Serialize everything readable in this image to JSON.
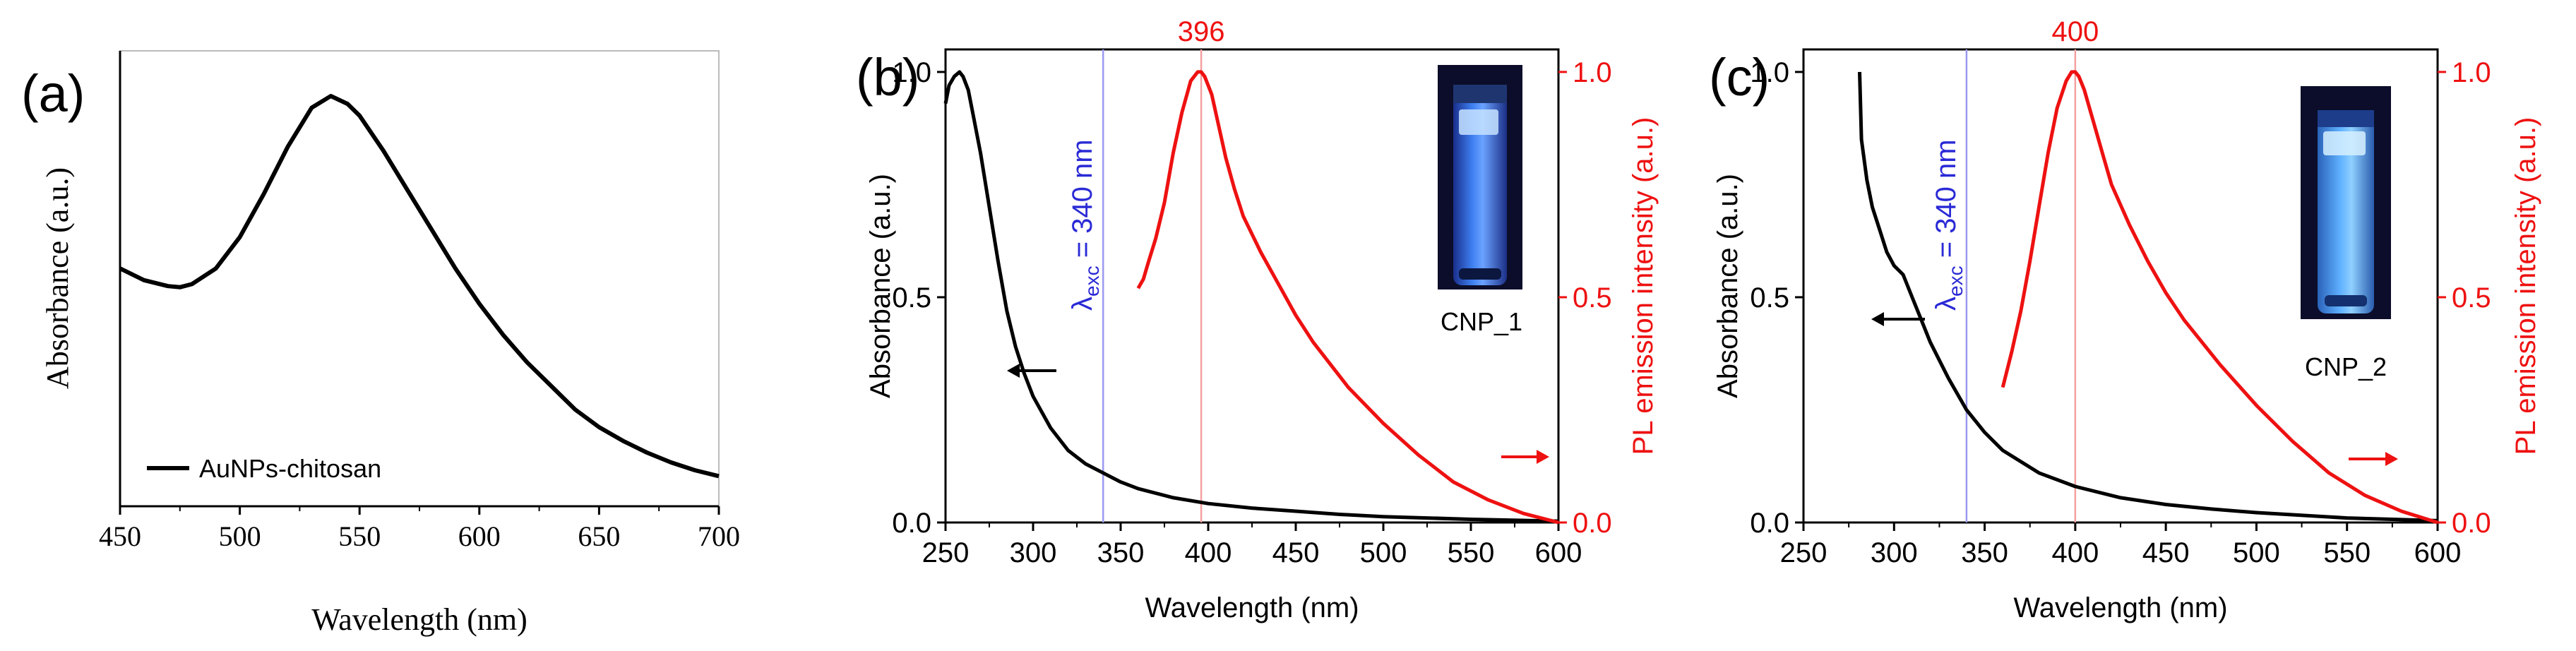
{
  "colors": {
    "black": "#000000",
    "red": "#ee1111",
    "blue": "#2a2ad6",
    "pale_blue": "#9a9af0",
    "pale_red": "#f4a0a0",
    "vial_bg": "#0b0d2a",
    "vial_glow": "#2f6fe0"
  },
  "chart_data": [
    {
      "panel": "(a)",
      "type": "line",
      "xlabel": "Wavelength (nm)",
      "ylabel": "Absorbance (a.u.)",
      "xlim": [
        450,
        700
      ],
      "ylim": [
        0,
        1
      ],
      "x_ticks": [
        "450",
        "500",
        "550",
        "600",
        "650",
        "700"
      ],
      "y_ticks": [],
      "legend": {
        "label": "AuNPs-chitosan",
        "placement": "bottom-left"
      },
      "series": [
        {
          "name": "AuNPs-chitosan",
          "color": "#000000",
          "x": [
            450,
            460,
            470,
            475,
            480,
            490,
            500,
            510,
            520,
            530,
            538,
            545,
            550,
            560,
            570,
            580,
            590,
            600,
            610,
            620,
            630,
            640,
            650,
            660,
            670,
            680,
            690,
            700
          ],
          "y": [
            0.56,
            0.53,
            0.515,
            0.512,
            0.52,
            0.56,
            0.64,
            0.75,
            0.87,
            0.97,
            1.0,
            0.98,
            0.95,
            0.86,
            0.76,
            0.66,
            0.56,
            0.47,
            0.39,
            0.32,
            0.26,
            0.2,
            0.155,
            0.12,
            0.09,
            0.065,
            0.045,
            0.03
          ]
        }
      ]
    },
    {
      "panel": "(b)",
      "type": "line",
      "xlabel": "Wavelength (nm)",
      "ylabel": "Absorbance (a.u.)",
      "ylabel_right": "PL emission intensity (a.u.)",
      "xlim": [
        250,
        600
      ],
      "ylim": [
        0,
        1.05
      ],
      "ylim_right": [
        0,
        1.05
      ],
      "x_ticks": [
        "250",
        "300",
        "350",
        "400",
        "450",
        "500",
        "550",
        "600"
      ],
      "y_ticks": [
        "0.0",
        "0.5",
        "1.0"
      ],
      "y_ticks_right": [
        "0.0",
        "0.5",
        "1.0"
      ],
      "excitation_label": {
        "lambda": "λ",
        "sub": "exc",
        "text": " = 340 nm",
        "x": 340
      },
      "peak_label": {
        "text": "396",
        "x": 396
      },
      "inset_label": "CNP_1",
      "series": [
        {
          "name": "Absorbance",
          "axis": "left",
          "color": "#000000",
          "x": [
            250,
            252,
            255,
            258,
            260,
            263,
            266,
            270,
            275,
            280,
            285,
            290,
            295,
            300,
            310,
            320,
            330,
            340,
            350,
            360,
            380,
            400,
            425,
            450,
            475,
            500,
            550,
            600
          ],
          "y": [
            0.93,
            0.97,
            0.99,
            1.0,
            0.99,
            0.96,
            0.9,
            0.82,
            0.7,
            0.58,
            0.47,
            0.39,
            0.33,
            0.28,
            0.21,
            0.16,
            0.13,
            0.11,
            0.09,
            0.075,
            0.055,
            0.042,
            0.032,
            0.025,
            0.018,
            0.013,
            0.007,
            0.003
          ]
        },
        {
          "name": "PL emission",
          "axis": "right",
          "color": "#ee1111",
          "x": [
            360,
            363,
            366,
            370,
            375,
            380,
            385,
            390,
            394,
            396,
            398,
            402,
            406,
            410,
            415,
            420,
            430,
            440,
            450,
            460,
            470,
            480,
            500,
            520,
            540,
            560,
            580,
            600
          ],
          "y": [
            0.52,
            0.54,
            0.58,
            0.63,
            0.71,
            0.82,
            0.91,
            0.98,
            1.0,
            1.0,
            0.99,
            0.95,
            0.88,
            0.81,
            0.74,
            0.68,
            0.6,
            0.53,
            0.46,
            0.4,
            0.35,
            0.3,
            0.22,
            0.15,
            0.09,
            0.05,
            0.02,
            0.0
          ]
        }
      ]
    },
    {
      "panel": "(c)",
      "type": "line",
      "xlabel": "Wavelength (nm)",
      "ylabel": "Absorbance (a.u.)",
      "ylabel_right": "PL emission intensity (a.u.)",
      "xlim": [
        250,
        600
      ],
      "ylim": [
        0,
        1.05
      ],
      "ylim_right": [
        0,
        1.05
      ],
      "x_ticks": [
        "250",
        "300",
        "350",
        "400",
        "450",
        "500",
        "550",
        "600"
      ],
      "y_ticks": [
        "0.0",
        "0.5",
        "1.0"
      ],
      "y_ticks_right": [
        "0.0",
        "0.5",
        "1.0"
      ],
      "excitation_label": {
        "lambda": "λ",
        "sub": "exc",
        "text": " = 340 nm",
        "x": 340
      },
      "peak_label": {
        "text": "400",
        "x": 400
      },
      "inset_label": "CNP_2",
      "series": [
        {
          "name": "Absorbance",
          "axis": "left",
          "color": "#000000",
          "x": [
            281,
            282,
            285,
            288,
            292,
            296,
            300,
            305,
            310,
            315,
            320,
            330,
            340,
            350,
            360,
            380,
            400,
            425,
            450,
            475,
            500,
            550,
            600
          ],
          "y": [
            1.0,
            0.85,
            0.76,
            0.7,
            0.65,
            0.6,
            0.57,
            0.55,
            0.5,
            0.45,
            0.4,
            0.32,
            0.25,
            0.2,
            0.16,
            0.11,
            0.08,
            0.055,
            0.04,
            0.03,
            0.022,
            0.01,
            0.004
          ]
        },
        {
          "name": "PL emission",
          "axis": "right",
          "color": "#ee1111",
          "x": [
            360,
            365,
            370,
            375,
            380,
            385,
            390,
            395,
            398,
            400,
            402,
            405,
            410,
            415,
            420,
            430,
            440,
            450,
            460,
            470,
            480,
            500,
            520,
            540,
            560,
            580,
            600
          ],
          "y": [
            0.3,
            0.38,
            0.47,
            0.58,
            0.7,
            0.82,
            0.92,
            0.98,
            1.0,
            1.0,
            0.99,
            0.96,
            0.89,
            0.82,
            0.75,
            0.66,
            0.58,
            0.51,
            0.45,
            0.4,
            0.35,
            0.26,
            0.18,
            0.11,
            0.06,
            0.025,
            0.0
          ]
        }
      ]
    }
  ]
}
